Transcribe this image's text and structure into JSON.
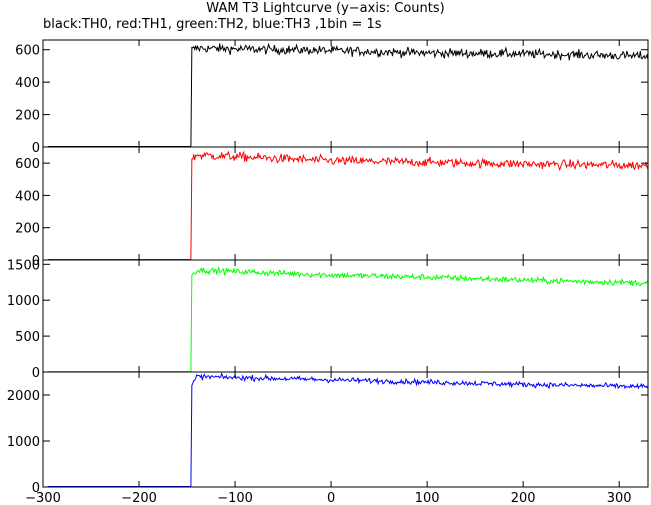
{
  "chart_data": {
    "type": "line",
    "title": "WAM T3 Lightcurve (y−axis: Counts)",
    "subtitle": "black:TH0, red:TH1, green:TH2, blue:TH3 ,1bin = 1s",
    "xlabel": "",
    "ylabel": "",
    "shared_x": true,
    "xlim": [
      -300,
      330
    ],
    "xticks": [
      -300,
      -200,
      -100,
      0,
      100,
      200,
      300
    ],
    "x_tick_labels": [
      "−300",
      "−200",
      "−100",
      "0",
      "100",
      "200",
      "300"
    ],
    "bin_size_s": 1,
    "onset_x": -145,
    "grid": false,
    "series": [
      {
        "color": "#000000",
        "ylim": [
          0,
          660
        ],
        "yticks": [
          0,
          200,
          400,
          600
        ],
        "pre_level": 3,
        "post_profile": [
          [
            -145,
            600
          ],
          [
            -140,
            610
          ],
          [
            -100,
            605
          ],
          [
            0,
            595
          ],
          [
            100,
            580
          ],
          [
            200,
            575
          ],
          [
            330,
            560
          ]
        ],
        "noise": 20
      },
      {
        "color": "#ff0000",
        "ylim": [
          0,
          700
        ],
        "yticks": [
          0,
          200,
          400,
          600
        ],
        "pre_level": 3,
        "post_profile": [
          [
            -145,
            620
          ],
          [
            -140,
            650
          ],
          [
            -100,
            640
          ],
          [
            0,
            615
          ],
          [
            100,
            605
          ],
          [
            200,
            595
          ],
          [
            330,
            585
          ]
        ],
        "noise": 20
      },
      {
        "color": "#00ff00",
        "ylim": [
          0,
          1560
        ],
        "yticks": [
          0,
          500,
          1000,
          1500
        ],
        "pre_level": 5,
        "post_profile": [
          [
            -145,
            1350
          ],
          [
            -140,
            1420
          ],
          [
            -100,
            1400
          ],
          [
            0,
            1350
          ],
          [
            100,
            1320
          ],
          [
            200,
            1280
          ],
          [
            330,
            1240
          ]
        ],
        "noise": 30
      },
      {
        "color": "#0000ff",
        "ylim": [
          0,
          2500
        ],
        "yticks": [
          0,
          1000,
          2000
        ],
        "pre_level": 10,
        "post_profile": [
          [
            -145,
            2200
          ],
          [
            -140,
            2400
          ],
          [
            -100,
            2380
          ],
          [
            0,
            2330
          ],
          [
            100,
            2280
          ],
          [
            200,
            2230
          ],
          [
            330,
            2180
          ]
        ],
        "noise": 40
      }
    ]
  }
}
